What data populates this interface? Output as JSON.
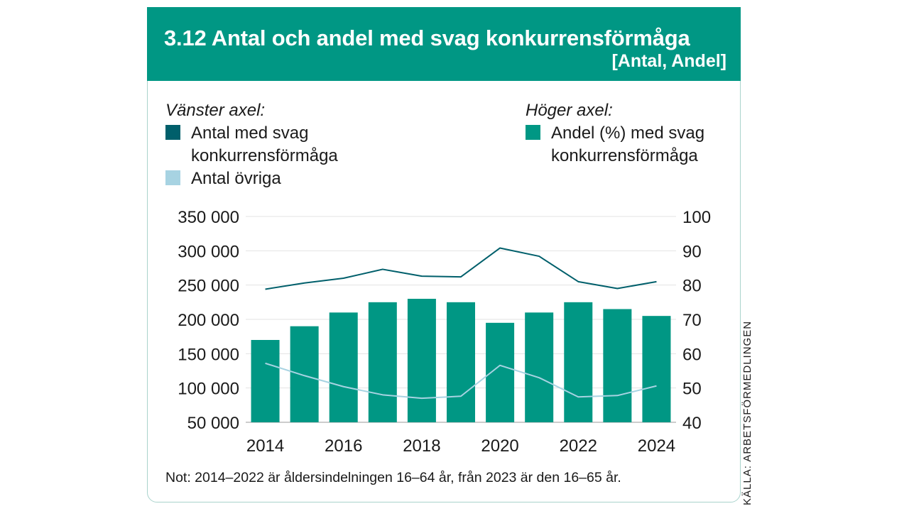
{
  "header": {
    "title": "3.12  Antal och andel med svag konkurrensförmåga",
    "subtitle": "[Antal, Andel]"
  },
  "legend": {
    "left_heading": "Vänster axel:",
    "right_heading": "Höger axel:",
    "items": [
      {
        "label_line1": "Antal med svag",
        "label_line2": "konkurrensförmåga",
        "color": "#005f6b"
      },
      {
        "label_line1": "Antal övriga",
        "label_line2": "",
        "color": "#a7d3e2"
      },
      {
        "label_line1": "Andel (%) med svag",
        "label_line2": "konkurrensförmåga",
        "color": "#009784"
      }
    ]
  },
  "note": "Not: 2014–2022 är åldersindelningen 16–64 år, från 2023 är den 16–65 år.",
  "source": "KÄLLA: ARBETSFÖRMEDLINGEN",
  "chart_data": {
    "type": "bar",
    "x": [
      2014,
      2015,
      2016,
      2017,
      2018,
      2019,
      2020,
      2021,
      2022,
      2023,
      2024
    ],
    "x_tick_labels": [
      "2014",
      "2016",
      "2018",
      "2020",
      "2022",
      "2024"
    ],
    "left_axis": {
      "ylim": [
        50000,
        350000
      ],
      "tick_labels": [
        "50 000",
        "100 000",
        "150 000",
        "200 000",
        "250 000",
        "300 000",
        "350 000"
      ],
      "tick_values": [
        50000,
        100000,
        150000,
        200000,
        250000,
        300000,
        350000
      ]
    },
    "right_axis": {
      "ylim": [
        40,
        100
      ],
      "tick_labels": [
        "40",
        "50",
        "60",
        "70",
        "80",
        "90",
        "100"
      ],
      "tick_values": [
        40,
        50,
        60,
        70,
        80,
        90,
        100
      ]
    },
    "grid": true,
    "series": [
      {
        "name": "Andel (%) med svag konkurrensförmåga",
        "type": "bar",
        "axis": "right",
        "color": "#009784",
        "values": [
          64,
          68,
          72,
          75,
          76,
          75,
          69,
          72,
          75,
          73,
          71
        ]
      },
      {
        "name": "Antal med svag konkurrensförmåga",
        "type": "line",
        "axis": "left",
        "color": "#005f6b",
        "values": [
          244000,
          253000,
          260000,
          273000,
          263000,
          262000,
          304000,
          292000,
          255000,
          245000,
          255000
        ]
      },
      {
        "name": "Antal övriga",
        "type": "line",
        "axis": "left",
        "color": "#a7d3e2",
        "values": [
          136000,
          118000,
          102000,
          90000,
          85000,
          88000,
          133000,
          115000,
          87000,
          89000,
          103000
        ]
      }
    ]
  }
}
